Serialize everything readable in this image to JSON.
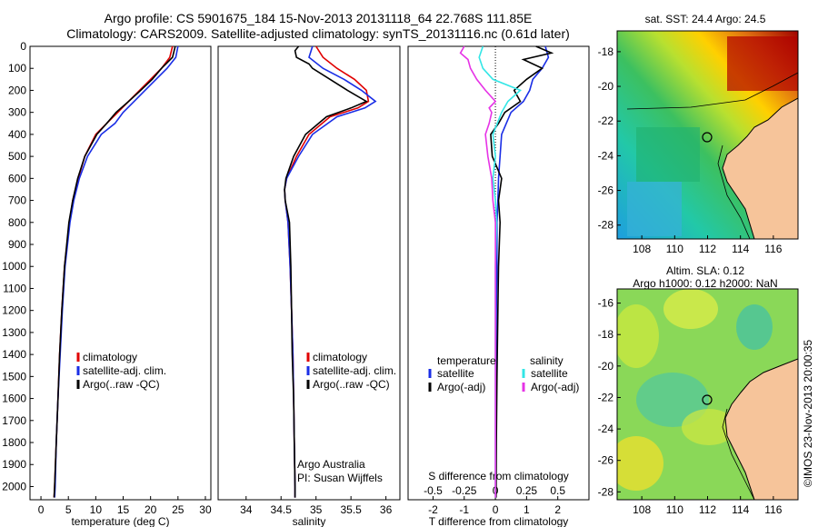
{
  "title": {
    "line1": "Argo profile: CS 5901675_184 15-Nov-2013 20131118_64 22.768S 111.85E",
    "line2": "Climatology: CARS2009. Satellite-adjusted climatology: synTS_20131116.nc (0.61d later)"
  },
  "colors": {
    "climatology": "#e00000",
    "satellite": "#1a2ee6",
    "argo": "#000000",
    "salinity_sat": "#33e6e6",
    "salinity_argo": "#e633e6"
  },
  "chart_data": [
    {
      "type": "line",
      "xlabel": "temperature (deg C)",
      "xlim": [
        -2,
        31
      ],
      "ylim": [
        0,
        2060
      ],
      "yticks": [
        0,
        100,
        200,
        300,
        400,
        500,
        600,
        700,
        800,
        900,
        1000,
        1100,
        1200,
        1300,
        1400,
        1500,
        1600,
        1700,
        1800,
        1900,
        2000
      ],
      "xticks": [
        0,
        5,
        10,
        15,
        20,
        25,
        30
      ],
      "legend": [
        "climatology",
        "satellite-adj. clim.",
        "Argo(..raw -QC)"
      ],
      "series": [
        {
          "name": "climatology",
          "depth": [
            0,
            50,
            100,
            150,
            200,
            250,
            300,
            350,
            400,
            500,
            600,
            700,
            800,
            1000,
            1200,
            1400,
            1600,
            1800,
            2000,
            2050
          ],
          "values": [
            24,
            23.5,
            22,
            20,
            18,
            16,
            14,
            12,
            10,
            8,
            6.8,
            5.8,
            5.2,
            4.3,
            3.8,
            3.4,
            3.1,
            2.8,
            2.5,
            2.4
          ]
        },
        {
          "name": "satellite-adj. clim.",
          "depth": [
            0,
            50,
            100,
            150,
            200,
            250,
            300,
            350,
            400,
            500,
            600,
            700,
            800,
            1000,
            1200,
            1400,
            1600,
            1800,
            2000,
            2050
          ],
          "values": [
            25,
            24.6,
            23,
            21,
            19,
            17,
            15,
            13.5,
            11,
            8.5,
            7,
            6,
            5.3,
            4.4,
            3.9,
            3.5,
            3.1,
            2.8,
            2.6,
            2.5
          ]
        },
        {
          "name": "Argo(..raw -QC)",
          "depth": [
            0,
            50,
            100,
            150,
            200,
            250,
            300,
            350,
            400,
            500,
            600,
            700,
            800,
            1000,
            1200,
            1400,
            1600,
            1800,
            2000,
            2050
          ],
          "values": [
            24.5,
            24,
            22,
            20.3,
            18.2,
            16,
            13.7,
            12,
            10.2,
            8,
            6.7,
            5.8,
            5.1,
            4.3,
            3.8,
            3.4,
            3.1,
            2.8,
            2.5,
            2.4
          ]
        }
      ]
    },
    {
      "type": "line",
      "xlabel": "salinity",
      "xlim": [
        33.6,
        36.2
      ],
      "ylim": [
        0,
        2060
      ],
      "xticks": [
        34,
        34.5,
        35,
        35.5,
        36
      ],
      "legend": [
        "climatology",
        "satellite-adj. clim.",
        "Argo(..raw -QC)"
      ],
      "notes": [
        "Argo Australia",
        "PI: Susan Wijffels"
      ],
      "series": [
        {
          "name": "climatology",
          "depth": [
            0,
            50,
            100,
            150,
            200,
            250,
            280,
            320,
            400,
            500,
            600,
            650,
            700,
            800,
            1000,
            1200,
            1400,
            1600,
            1800,
            2000,
            2050
          ],
          "values": [
            35.0,
            35.1,
            35.3,
            35.55,
            35.72,
            35.75,
            35.6,
            35.2,
            34.9,
            34.72,
            34.58,
            34.55,
            34.56,
            34.6,
            34.63,
            34.65,
            34.67,
            34.68,
            34.69,
            34.7,
            34.7
          ]
        },
        {
          "name": "satellite-adj. clim.",
          "depth": [
            0,
            50,
            100,
            150,
            200,
            250,
            280,
            320,
            400,
            500,
            600,
            650,
            700,
            800,
            1000,
            1200,
            1400,
            1600,
            1800,
            2000,
            2050
          ],
          "values": [
            34.95,
            34.9,
            35.1,
            35.4,
            35.65,
            35.85,
            35.7,
            35.3,
            34.95,
            34.75,
            34.58,
            34.55,
            34.56,
            34.6,
            34.63,
            34.65,
            34.67,
            34.68,
            34.69,
            34.7,
            34.7
          ]
        },
        {
          "name": "Argo(..raw -QC)",
          "depth": [
            0,
            20,
            50,
            80,
            100,
            150,
            200,
            250,
            280,
            320,
            400,
            500,
            600,
            650,
            700,
            800,
            1000,
            1200,
            1400,
            1600,
            1800,
            2000,
            2050
          ],
          "values": [
            34.75,
            34.7,
            34.72,
            34.9,
            34.95,
            35.2,
            35.45,
            35.72,
            35.5,
            35.15,
            34.85,
            34.68,
            34.57,
            34.55,
            34.56,
            34.62,
            34.64,
            34.65,
            34.66,
            34.68,
            34.69,
            34.7,
            34.7
          ]
        }
      ]
    },
    {
      "type": "line",
      "xlabel": "T difference from climatology",
      "x2label": "S difference from climatology",
      "xlim": [
        -2.8,
        3.0
      ],
      "ylim": [
        0,
        2060
      ],
      "xticks": [
        -2,
        -1,
        0,
        1,
        2
      ],
      "x2ticks": [
        -0.5,
        -0.25,
        0,
        0.25,
        0.5
      ],
      "legend_titles": [
        "temperature",
        "salinity"
      ],
      "legend": [
        "satellite",
        "Argo(-adj)",
        "satellite",
        "Argo(-adj)"
      ],
      "series": [
        {
          "name": "satellite",
          "quantity": "temperature",
          "depth": [
            0,
            50,
            100,
            150,
            200,
            250,
            300,
            400,
            500,
            600,
            700,
            800,
            1000,
            1200,
            1500,
            1800,
            2050
          ],
          "values": [
            1.6,
            1.7,
            1.5,
            1.2,
            1.1,
            0.9,
            0.5,
            0.2,
            0.15,
            0.1,
            0.08,
            0.05,
            0.05,
            0.03,
            0.02,
            0.02,
            0.01
          ]
        },
        {
          "name": "Argo(-adj)",
          "quantity": "temperature",
          "depth": [
            0,
            30,
            60,
            100,
            150,
            200,
            250,
            300,
            350,
            400,
            500,
            600,
            700,
            800,
            1000,
            1200,
            1500,
            1800,
            2050
          ],
          "values": [
            1.3,
            1.8,
            0.9,
            1.5,
            1.0,
            0.6,
            0.8,
            0.3,
            0.1,
            -0.15,
            -0.1,
            0.2,
            0.1,
            0.15,
            0.1,
            0.08,
            0.05,
            0.03,
            0.02
          ]
        },
        {
          "name": "satellite",
          "quantity": "salinity",
          "depth": [
            0,
            50,
            100,
            150,
            200,
            250,
            300,
            400,
            500,
            600,
            700,
            800,
            1000,
            1200,
            1500,
            1800,
            2050
          ],
          "values": [
            -0.1,
            -0.13,
            -0.1,
            -0.02,
            0.2,
            0.1,
            0.05,
            -0.02,
            0.0,
            -0.02,
            0.0,
            0.01,
            0.0,
            0.0,
            0.0,
            0.0,
            0.0
          ]
        },
        {
          "name": "Argo(-adj)",
          "quantity": "salinity",
          "depth": [
            0,
            30,
            60,
            100,
            150,
            200,
            250,
            280,
            300,
            350,
            400,
            500,
            600,
            700,
            800,
            1000,
            1200,
            1500,
            1800,
            2050
          ],
          "values": [
            -0.25,
            -0.28,
            -0.22,
            -0.2,
            -0.15,
            -0.08,
            0.0,
            -0.05,
            -0.03,
            -0.05,
            -0.08,
            -0.06,
            -0.03,
            -0.02,
            0.0,
            0.0,
            0.0,
            0.0,
            0.0,
            0.0
          ]
        }
      ]
    },
    {
      "type": "heatmap",
      "title": "sat. SST: 24.4  Argo: 24.5",
      "xticks": [
        108,
        110,
        112,
        114,
        116
      ],
      "yticks": [
        -18,
        -20,
        -22,
        -24,
        -26,
        -28
      ],
      "xlim": [
        106.5,
        117.5
      ],
      "ylim": [
        -28.8,
        -16.8
      ],
      "marker": {
        "lon": 111.85,
        "lat": -22.768
      }
    },
    {
      "type": "heatmap",
      "title_line1": "Altim. SLA: 0.12",
      "title_line2": "Argo h1000: 0.12 h2000: NaN",
      "xticks": [
        108,
        110,
        112,
        114,
        116
      ],
      "yticks": [
        -16,
        -18,
        -20,
        -22,
        -24,
        -26,
        -28
      ],
      "xlim": [
        106.5,
        117.5
      ],
      "ylim": [
        -28.5,
        -15.1
      ],
      "marker": {
        "lon": 111.85,
        "lat": -22.768
      }
    }
  ],
  "footer": {
    "stamp": "©IMOS 23-Nov-2013 20:00:35"
  }
}
